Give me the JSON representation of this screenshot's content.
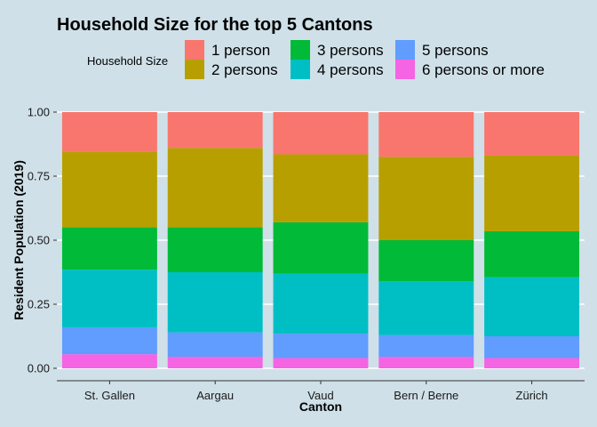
{
  "chart_data": {
    "type": "bar",
    "stacked": true,
    "title": "Household Size for the top 5 Cantons",
    "xlabel": "Canton",
    "ylabel": "Resident Population (2019)",
    "ylim": [
      0,
      1
    ],
    "yticks": [
      "0.00",
      "0.25",
      "0.50",
      "0.75",
      "1.00"
    ],
    "grid": "horizontal",
    "legend": {
      "title": "Household Size",
      "placement": "top"
    },
    "categories": [
      "St. Gallen",
      "Aargau",
      "Vaud",
      "Bern / Berne",
      "Zürich"
    ],
    "series": [
      {
        "name": "1 person",
        "color": "#f8766d",
        "values": [
          0.155,
          0.14,
          0.165,
          0.175,
          0.17
        ]
      },
      {
        "name": "2 persons",
        "color": "#b79f00",
        "values": [
          0.295,
          0.31,
          0.265,
          0.325,
          0.295
        ]
      },
      {
        "name": "3 persons",
        "color": "#00ba38",
        "values": [
          0.165,
          0.175,
          0.2,
          0.16,
          0.18
        ]
      },
      {
        "name": "4 persons",
        "color": "#00bfc4",
        "values": [
          0.225,
          0.235,
          0.235,
          0.21,
          0.23
        ]
      },
      {
        "name": "5 persons",
        "color": "#619cff",
        "values": [
          0.105,
          0.095,
          0.095,
          0.085,
          0.085
        ]
      },
      {
        "name": "6 persons or more",
        "color": "#f564e3",
        "values": [
          0.055,
          0.045,
          0.04,
          0.045,
          0.04
        ]
      }
    ]
  }
}
